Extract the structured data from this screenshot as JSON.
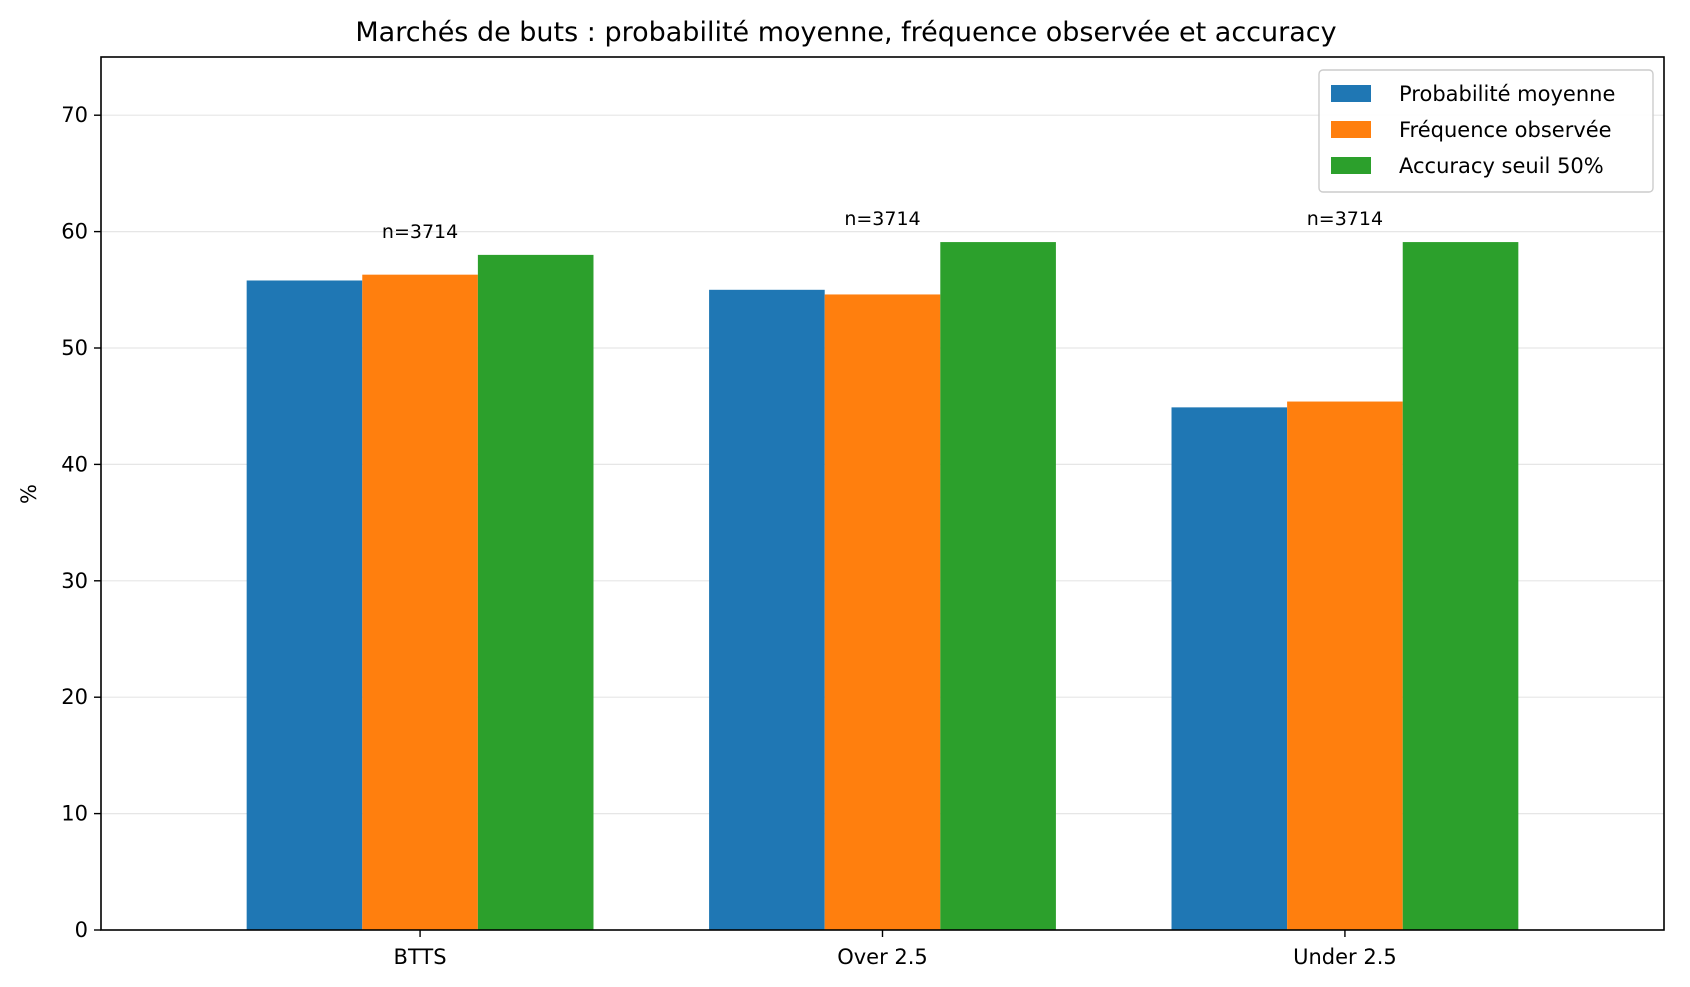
{
  "chart_data": {
    "type": "bar",
    "title": "Marchés de buts : probabilité moyenne, fréquence observée et accuracy",
    "xlabel": "",
    "ylabel": "%",
    "ylim": [
      0,
      75
    ],
    "yticks": [
      0,
      10,
      20,
      30,
      40,
      50,
      60,
      70
    ],
    "grid": "horizontal",
    "legend_position": "top-right",
    "categories": [
      "BTTS",
      "Over 2.5",
      "Under 2.5"
    ],
    "series": [
      {
        "name": "Probabilité moyenne",
        "color": "#1f77b4",
        "values": [
          55.8,
          55.0,
          44.9
        ]
      },
      {
        "name": "Fréquence observée",
        "color": "#ff7f0e",
        "values": [
          56.3,
          54.6,
          45.4
        ]
      },
      {
        "name": "Accuracy seuil 50%",
        "color": "#2ca02c",
        "values": [
          58.0,
          59.1,
          59.1
        ]
      }
    ],
    "annotations": [
      "n=3714",
      "n=3714",
      "n=3714"
    ]
  }
}
